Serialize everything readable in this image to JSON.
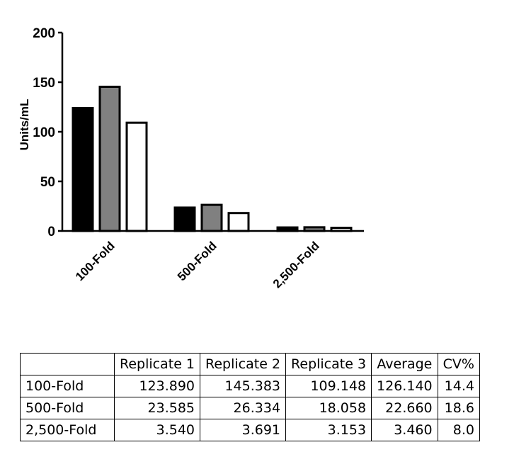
{
  "chart_data": {
    "type": "bar",
    "categories": [
      "100-Fold",
      "500-Fold",
      "2,500-Fold"
    ],
    "series": [
      {
        "values": [
          123.89,
          23.585,
          3.54
        ],
        "color": "#000000"
      },
      {
        "values": [
          145.383,
          26.334,
          3.691
        ],
        "color": "#808080"
      },
      {
        "values": [
          109.148,
          18.058,
          3.153
        ],
        "color": "#ffffff"
      }
    ],
    "ylabel": "Units/mL",
    "ylim": [
      0,
      200
    ],
    "yticks": [
      "0",
      "50",
      "100",
      "150",
      "200"
    ],
    "grid": false
  },
  "table": {
    "headers": [
      "",
      "Replicate 1",
      "Replicate 2",
      "Replicate 3",
      "Average",
      "CV%"
    ],
    "rows": [
      [
        "100-Fold",
        "123.890",
        "145.383",
        "109.148",
        "126.140",
        "14.4"
      ],
      [
        "500-Fold",
        "23.585",
        "26.334",
        "18.058",
        "22.660",
        "18.6"
      ],
      [
        "2,500-Fold",
        "3.540",
        "3.691",
        "3.153",
        "3.460",
        "8.0"
      ]
    ]
  }
}
